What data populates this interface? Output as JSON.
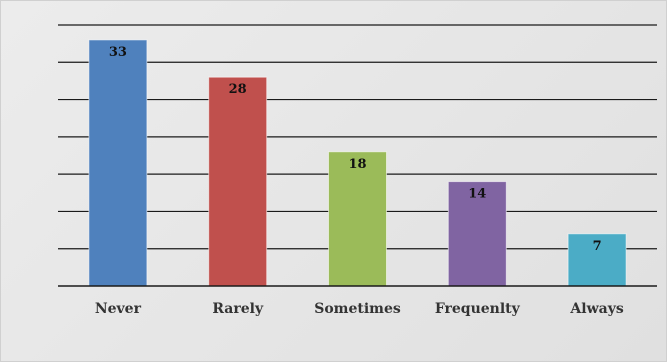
{
  "chart_data": {
    "type": "bar",
    "categories": [
      "Never",
      "Rarely",
      "Sometimes",
      "Frequenlty",
      "Always"
    ],
    "values": [
      33,
      28,
      18,
      14,
      7
    ],
    "colors": [
      "#4f81bd",
      "#c0504d",
      "#9bbb59",
      "#8064a2",
      "#4bacc6"
    ],
    "ylim": [
      0,
      35
    ],
    "grid": true,
    "legend": "none",
    "title": "",
    "xlabel": "",
    "ylabel": ""
  }
}
